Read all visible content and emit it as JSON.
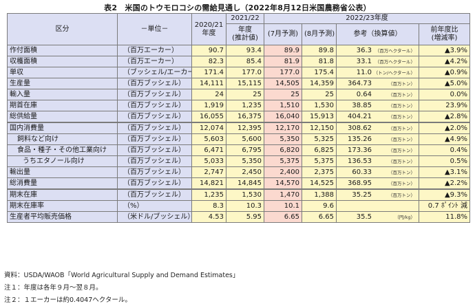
{
  "title": "表2　米国のトウモロコシの需給見通し（2022年8月12日米国農務省公表）",
  "header": {
    "category": "区分",
    "unit": "－単位－",
    "y2020": "2020/21\n年度",
    "y2021_top": "2021/22",
    "y2021_bottom": "年度\n(推計値)",
    "y2022_group": "2022/23年度",
    "jul": "(7月予測)",
    "aug": "(8月予測)",
    "ref": "参考（換算値）",
    "change": "前年度比\n(増減率)"
  },
  "rows": [
    {
      "label": "作付面積",
      "unit": "（百万エーカー）",
      "y2020": "90.7",
      "y2021": "93.4",
      "jul": "89.9",
      "aug": "89.8",
      "ref": "36.3",
      "ref_unit": "（百万ヘクタール）",
      "change": "▲3.9%"
    },
    {
      "label": "収穫面積",
      "unit": "（百万エーカー）",
      "y2020": "82.3",
      "y2021": "85.4",
      "jul": "81.9",
      "aug": "81.8",
      "ref": "33.1",
      "ref_unit": "（百万ヘクタール）",
      "change": "▲4.2%"
    },
    {
      "label": "単収",
      "unit": "（ブッシェル/エーカー）",
      "y2020": "171.4",
      "y2021": "177.0",
      "jul": "177.0",
      "aug": "175.4",
      "ref": "11.0",
      "ref_unit": "（トン/ヘクタール）",
      "change": "▲0.9%"
    },
    {
      "label": "生産量",
      "unit": "（百万ブッシェル）",
      "y2020": "14,111",
      "y2021": "15,115",
      "jul": "14,505",
      "aug": "14,359",
      "ref": "364.73",
      "ref_unit": "（百万トン）",
      "change": "▲5.0%"
    },
    {
      "label": "輸入量",
      "unit": "（百万ブッシェル）",
      "y2020": "24",
      "y2021": "25",
      "jul": "25",
      "aug": "25",
      "ref": "0.64",
      "ref_unit": "（百万トン）",
      "change": "0.0%"
    },
    {
      "label": "期首在庫",
      "unit": "（百万ブッシェル）",
      "y2020": "1,919",
      "y2021": "1,235",
      "jul": "1,510",
      "aug": "1,530",
      "ref": "38.85",
      "ref_unit": "（百万トン）",
      "change": "23.9%"
    },
    {
      "label": "総供給量",
      "unit": "（百万ブッシェル）",
      "y2020": "16,055",
      "y2021": "16,375",
      "jul": "16,040",
      "aug": "15,913",
      "ref": "404.21",
      "ref_unit": "（百万トン）",
      "change": "▲2.8%"
    },
    {
      "label": "国内消費量",
      "unit": "（百万ブッシェル）",
      "y2020": "12,074",
      "y2021": "12,395",
      "jul": "12,170",
      "aug": "12,150",
      "ref": "308.62",
      "ref_unit": "（百万トン）",
      "change": "▲2.0%"
    },
    {
      "label": "飼料など向け",
      "unit": "（百万ブッシェル）",
      "y2020": "5,603",
      "y2021": "5,600",
      "jul": "5,350",
      "aug": "5,325",
      "ref": "135.26",
      "ref_unit": "（百万トン）",
      "change": "▲4.9%"
    },
    {
      "label": "食品・種子・その他工業向け",
      "unit": "（百万ブッシェル）",
      "y2020": "6,471",
      "y2021": "6,795",
      "jul": "6,820",
      "aug": "6,825",
      "ref": "173.36",
      "ref_unit": "（百万トン）",
      "change": "0.4%"
    },
    {
      "label": "うちエタノール向け",
      "unit": "（百万ブッシェル）",
      "y2020": "5,033",
      "y2021": "5,350",
      "jul": "5,375",
      "aug": "5,375",
      "ref": "136.53",
      "ref_unit": "（百万トン）",
      "change": "0.5%"
    },
    {
      "label": "輸出量",
      "unit": "（百万ブッシェル）",
      "y2020": "2,747",
      "y2021": "2,450",
      "jul": "2,400",
      "aug": "2,375",
      "ref": "60.33",
      "ref_unit": "（百万トン）",
      "change": "▲3.1%"
    },
    {
      "label": "総消費量",
      "unit": "（百万ブッシェル）",
      "y2020": "14,821",
      "y2021": "14,845",
      "jul": "14,570",
      "aug": "14,525",
      "ref": "368.95",
      "ref_unit": "（百万トン）",
      "change": "▲2.2%"
    },
    {
      "label": "期末在庫",
      "unit": "（百万ブッシェル）",
      "y2020": "1,235",
      "y2021": "1,530",
      "jul": "1,470",
      "aug": "1,388",
      "ref": "35.25",
      "ref_unit": "（百万トン）",
      "change": "▲9.3%"
    },
    {
      "label": "期末在庫率",
      "unit": "（%）",
      "y2020": "8.3",
      "y2021": "10.3",
      "jul": "10.1",
      "aug": "9.6",
      "ref": "",
      "ref_unit": "",
      "change": "0.7 ﾎﾟｲﾝﾄ 減"
    },
    {
      "label": "生産者平均販売価格",
      "unit": "（米ドル/ブッシェル）",
      "y2020": "4.53",
      "y2021": "5.95",
      "jul": "6.65",
      "aug": "6.65",
      "ref": "35.5",
      "ref_unit": "（円/kg）",
      "change": "11.8%"
    }
  ],
  "notes": [
    "資料：USDA/WAOB「World Agricultural Supply and Demand Estimates」",
    "注１：年度は各年９月～翌８月。",
    "注２：１エーカーは約0.4047ヘクタール。"
  ]
}
